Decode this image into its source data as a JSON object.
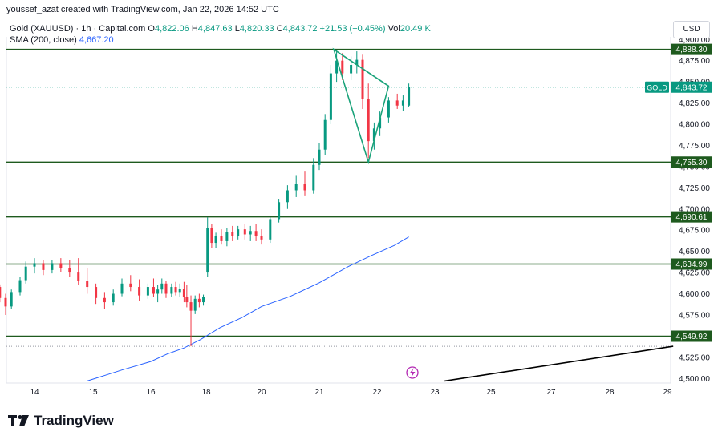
{
  "attribution": "youssef_azat created with TradingView.com, Jan 22, 2026 14:52 UTC",
  "legend": {
    "symbol": "Gold (XAUUSD) · 1h · Capital.com",
    "open_label": "O",
    "open": "4,822.06",
    "high_label": "H",
    "high": "4,847.63",
    "low_label": "L",
    "low": "4,820.33",
    "close_label": "C",
    "close": "4,843.72",
    "change": "+21.53 (+0.45%)",
    "vol_label": "Vol",
    "vol": "20.49 K",
    "sma_label": "SMA (200, close)",
    "sma_value": "4,667.20"
  },
  "currency": "USD",
  "brand": "TradingView",
  "colors": {
    "up": "#089981",
    "down": "#f23645",
    "level": "#1e5a1e",
    "level_label_bg": "#1e5a1e",
    "triangle": "#1aa37a",
    "sma": "#2962ff",
    "trend": "#000000"
  },
  "chart_data": {
    "type": "candlestick",
    "symbol": "Gold (XAUUSD)",
    "interval": "1h",
    "ylim": [
      4500,
      4900
    ],
    "y_ticks": [
      "4,500.00",
      "4,525.00",
      "4,550.00",
      "4,575.00",
      "4,600.00",
      "4,625.00",
      "4,650.00",
      "4,675.00",
      "4,700.00",
      "4,725.00",
      "4,750.00",
      "4,775.00",
      "4,800.00",
      "4,825.00",
      "4,850.00",
      "4,875.00",
      "4,900.00"
    ],
    "x_ticks": [
      {
        "label": "14",
        "day": 14
      },
      {
        "label": "15",
        "day": 15
      },
      {
        "label": "16",
        "day": 16
      },
      {
        "label": "18",
        "day": 18
      },
      {
        "label": "20",
        "day": 20
      },
      {
        "label": "21",
        "day": 21
      },
      {
        "label": "22",
        "day": 22
      },
      {
        "label": "23",
        "day": 23
      },
      {
        "label": "25",
        "day": 25
      },
      {
        "label": "27",
        "day": 27
      },
      {
        "label": "28",
        "day": 28
      },
      {
        "label": "29",
        "day": 29
      }
    ],
    "horizontal_levels": [
      {
        "price": 4888.3,
        "label": "4,888.30"
      },
      {
        "price": 4755.3,
        "label": "4,755.30"
      },
      {
        "price": 4690.61,
        "label": "4,690.61"
      },
      {
        "price": 4634.99,
        "label": "4,634.99"
      },
      {
        "price": 4549.92,
        "label": "4,549.92"
      }
    ],
    "current_price": {
      "symbol": "GOLD",
      "price": 4843.72,
      "label": "4,843.72"
    },
    "dotted_level": 4538,
    "triangle": [
      {
        "day": 21.25,
        "price": 4888.3
      },
      {
        "day": 22.2,
        "price": 4845
      },
      {
        "day": 21.85,
        "price": 4755.3
      }
    ],
    "trendline": [
      {
        "day": 23.35,
        "price": 4497
      },
      {
        "day": 29.1,
        "price": 4538
      }
    ],
    "sma": {
      "name": "SMA (200, close)",
      "points": [
        [
          14.9,
          4497
        ],
        [
          15.5,
          4510
        ],
        [
          16,
          4520
        ],
        [
          16.6,
          4529
        ],
        [
          17.2,
          4536
        ],
        [
          17.8,
          4546
        ],
        [
          18.5,
          4560
        ],
        [
          19.3,
          4572
        ],
        [
          20,
          4585
        ],
        [
          20.5,
          4597
        ],
        [
          21,
          4613
        ],
        [
          21.5,
          4632
        ],
        [
          21.9,
          4645
        ],
        [
          22.3,
          4657
        ],
        [
          22.55,
          4667
        ]
      ]
    },
    "candles": [
      [
        13.05,
        4612,
        4620,
        4600,
        4615
      ],
      [
        13.15,
        4615,
        4633,
        4608,
        4628
      ],
      [
        13.3,
        4628,
        4631,
        4605,
        4608
      ],
      [
        13.4,
        4608,
        4611,
        4590,
        4595
      ],
      [
        13.5,
        4595,
        4600,
        4575,
        4585
      ],
      [
        13.6,
        4585,
        4605,
        4582,
        4602
      ],
      [
        13.75,
        4602,
        4620,
        4598,
        4616
      ],
      [
        13.85,
        4616,
        4638,
        4612,
        4632
      ],
      [
        14,
        4632,
        4642,
        4624,
        4636
      ],
      [
        14.15,
        4636,
        4640,
        4622,
        4628
      ],
      [
        14.3,
        4628,
        4640,
        4624,
        4636
      ],
      [
        14.45,
        4636,
        4642,
        4626,
        4630
      ],
      [
        14.6,
        4630,
        4640,
        4620,
        4625
      ],
      [
        14.75,
        4625,
        4642,
        4610,
        4615
      ],
      [
        14.9,
        4615,
        4630,
        4600,
        4608
      ],
      [
        15.05,
        4608,
        4612,
        4588,
        4595
      ],
      [
        15.2,
        4595,
        4602,
        4582,
        4590
      ],
      [
        15.35,
        4590,
        4605,
        4586,
        4600
      ],
      [
        15.5,
        4600,
        4618,
        4597,
        4612
      ],
      [
        15.65,
        4612,
        4622,
        4603,
        4608
      ],
      [
        15.8,
        4608,
        4617,
        4592,
        4598
      ],
      [
        15.95,
        4598,
        4612,
        4594,
        4608
      ],
      [
        16.1,
        4608,
        4618,
        4596,
        4600
      ],
      [
        16.25,
        4600,
        4610,
        4590,
        4605
      ],
      [
        16.4,
        4605,
        4618,
        4600,
        4612
      ],
      [
        16.55,
        4612,
        4615,
        4595,
        4600
      ],
      [
        16.75,
        4600,
        4612,
        4596,
        4608
      ],
      [
        16.9,
        4608,
        4614,
        4598,
        4602
      ],
      [
        17.05,
        4602,
        4612,
        4596,
        4606
      ],
      [
        17.2,
        4606,
        4614,
        4590,
        4596
      ],
      [
        17.3,
        4596,
        4610,
        4584,
        4590
      ],
      [
        17.45,
        4590,
        4598,
        4538,
        4580
      ],
      [
        17.6,
        4580,
        4598,
        4576,
        4594
      ],
      [
        17.75,
        4594,
        4600,
        4584,
        4590
      ],
      [
        17.9,
        4590,
        4599,
        4586,
        4596
      ],
      [
        18.05,
        4625,
        4690,
        4620,
        4678
      ],
      [
        18.2,
        4678,
        4682,
        4654,
        4660
      ],
      [
        18.35,
        4660,
        4672,
        4654,
        4668
      ],
      [
        18.55,
        4668,
        4676,
        4658,
        4662
      ],
      [
        18.75,
        4662,
        4678,
        4656,
        4673
      ],
      [
        18.95,
        4673,
        4680,
        4662,
        4668
      ],
      [
        19.15,
        4668,
        4680,
        4664,
        4676
      ],
      [
        19.4,
        4676,
        4682,
        4664,
        4670
      ],
      [
        19.6,
        4670,
        4680,
        4662,
        4674
      ],
      [
        19.8,
        4674,
        4682,
        4662,
        4668
      ],
      [
        20,
        4668,
        4676,
        4658,
        4664
      ],
      [
        20.15,
        4664,
        4690,
        4660,
        4688
      ],
      [
        20.3,
        4688,
        4712,
        4684,
        4708
      ],
      [
        20.45,
        4708,
        4728,
        4700,
        4722
      ],
      [
        20.6,
        4722,
        4740,
        4714,
        4730
      ],
      [
        20.75,
        4730,
        4745,
        4716,
        4722
      ],
      [
        20.9,
        4722,
        4760,
        4718,
        4752
      ],
      [
        21,
        4752,
        4778,
        4746,
        4770
      ],
      [
        21.1,
        4770,
        4812,
        4764,
        4805
      ],
      [
        21.2,
        4805,
        4870,
        4800,
        4860
      ],
      [
        21.3,
        4860,
        4888,
        4850,
        4875
      ],
      [
        21.4,
        4875,
        4884,
        4852,
        4860
      ],
      [
        21.55,
        4860,
        4880,
        4852,
        4870
      ],
      [
        21.65,
        4870,
        4886,
        4860,
        4876
      ],
      [
        21.75,
        4876,
        4882,
        4818,
        4830
      ],
      [
        21.85,
        4830,
        4848,
        4760,
        4780
      ],
      [
        21.95,
        4780,
        4802,
        4770,
        4795
      ],
      [
        22.05,
        4795,
        4815,
        4786,
        4808
      ],
      [
        22.2,
        4808,
        4832,
        4802,
        4828
      ],
      [
        22.35,
        4828,
        4836,
        4818,
        4822
      ],
      [
        22.45,
        4822,
        4834,
        4816,
        4828
      ],
      [
        22.55,
        4822,
        4848,
        4820,
        4844
      ]
    ]
  }
}
